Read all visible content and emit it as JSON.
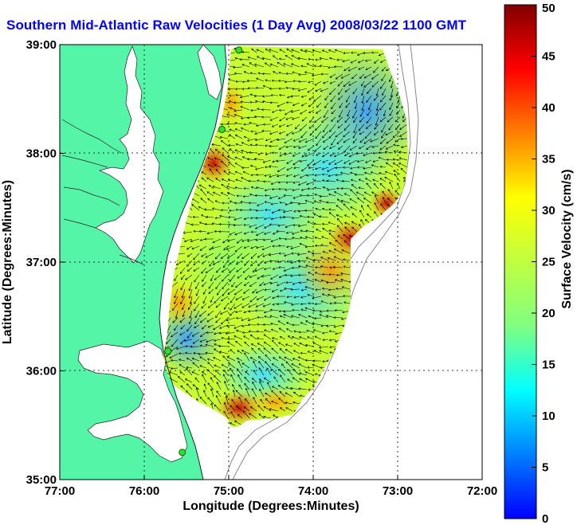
{
  "title": "Southern Mid-Atlantic Raw Velocities (1 Day Avg) 2008/03/22 1100 GMT",
  "x_axis": {
    "label": "Longitude (Degrees:Minutes)",
    "ticks": [
      "77:00",
      "76:00",
      "75:00",
      "74:00",
      "73:00",
      "72:00"
    ]
  },
  "y_axis": {
    "label": "Latitude (Degrees:Minutes)",
    "ticks": [
      "39:00",
      "38:00",
      "37:00",
      "36:00",
      "35:00"
    ]
  },
  "colorbar": {
    "label": "Surface Velocity (cm/s)",
    "ticks": [
      "0",
      "5",
      "10",
      "15",
      "20",
      "25",
      "30",
      "35",
      "40",
      "45",
      "50"
    ],
    "min": 0,
    "max": 50
  },
  "colors": {
    "land": "#55f5a8",
    "title": "#0000ff",
    "station": "#33dd33"
  },
  "stations": [
    {
      "lon": -74.88,
      "lat": 38.95
    },
    {
      "lon": -75.08,
      "lat": 38.22
    },
    {
      "lon": -75.72,
      "lat": 36.18
    },
    {
      "lon": -75.55,
      "lat": 35.25
    }
  ]
}
